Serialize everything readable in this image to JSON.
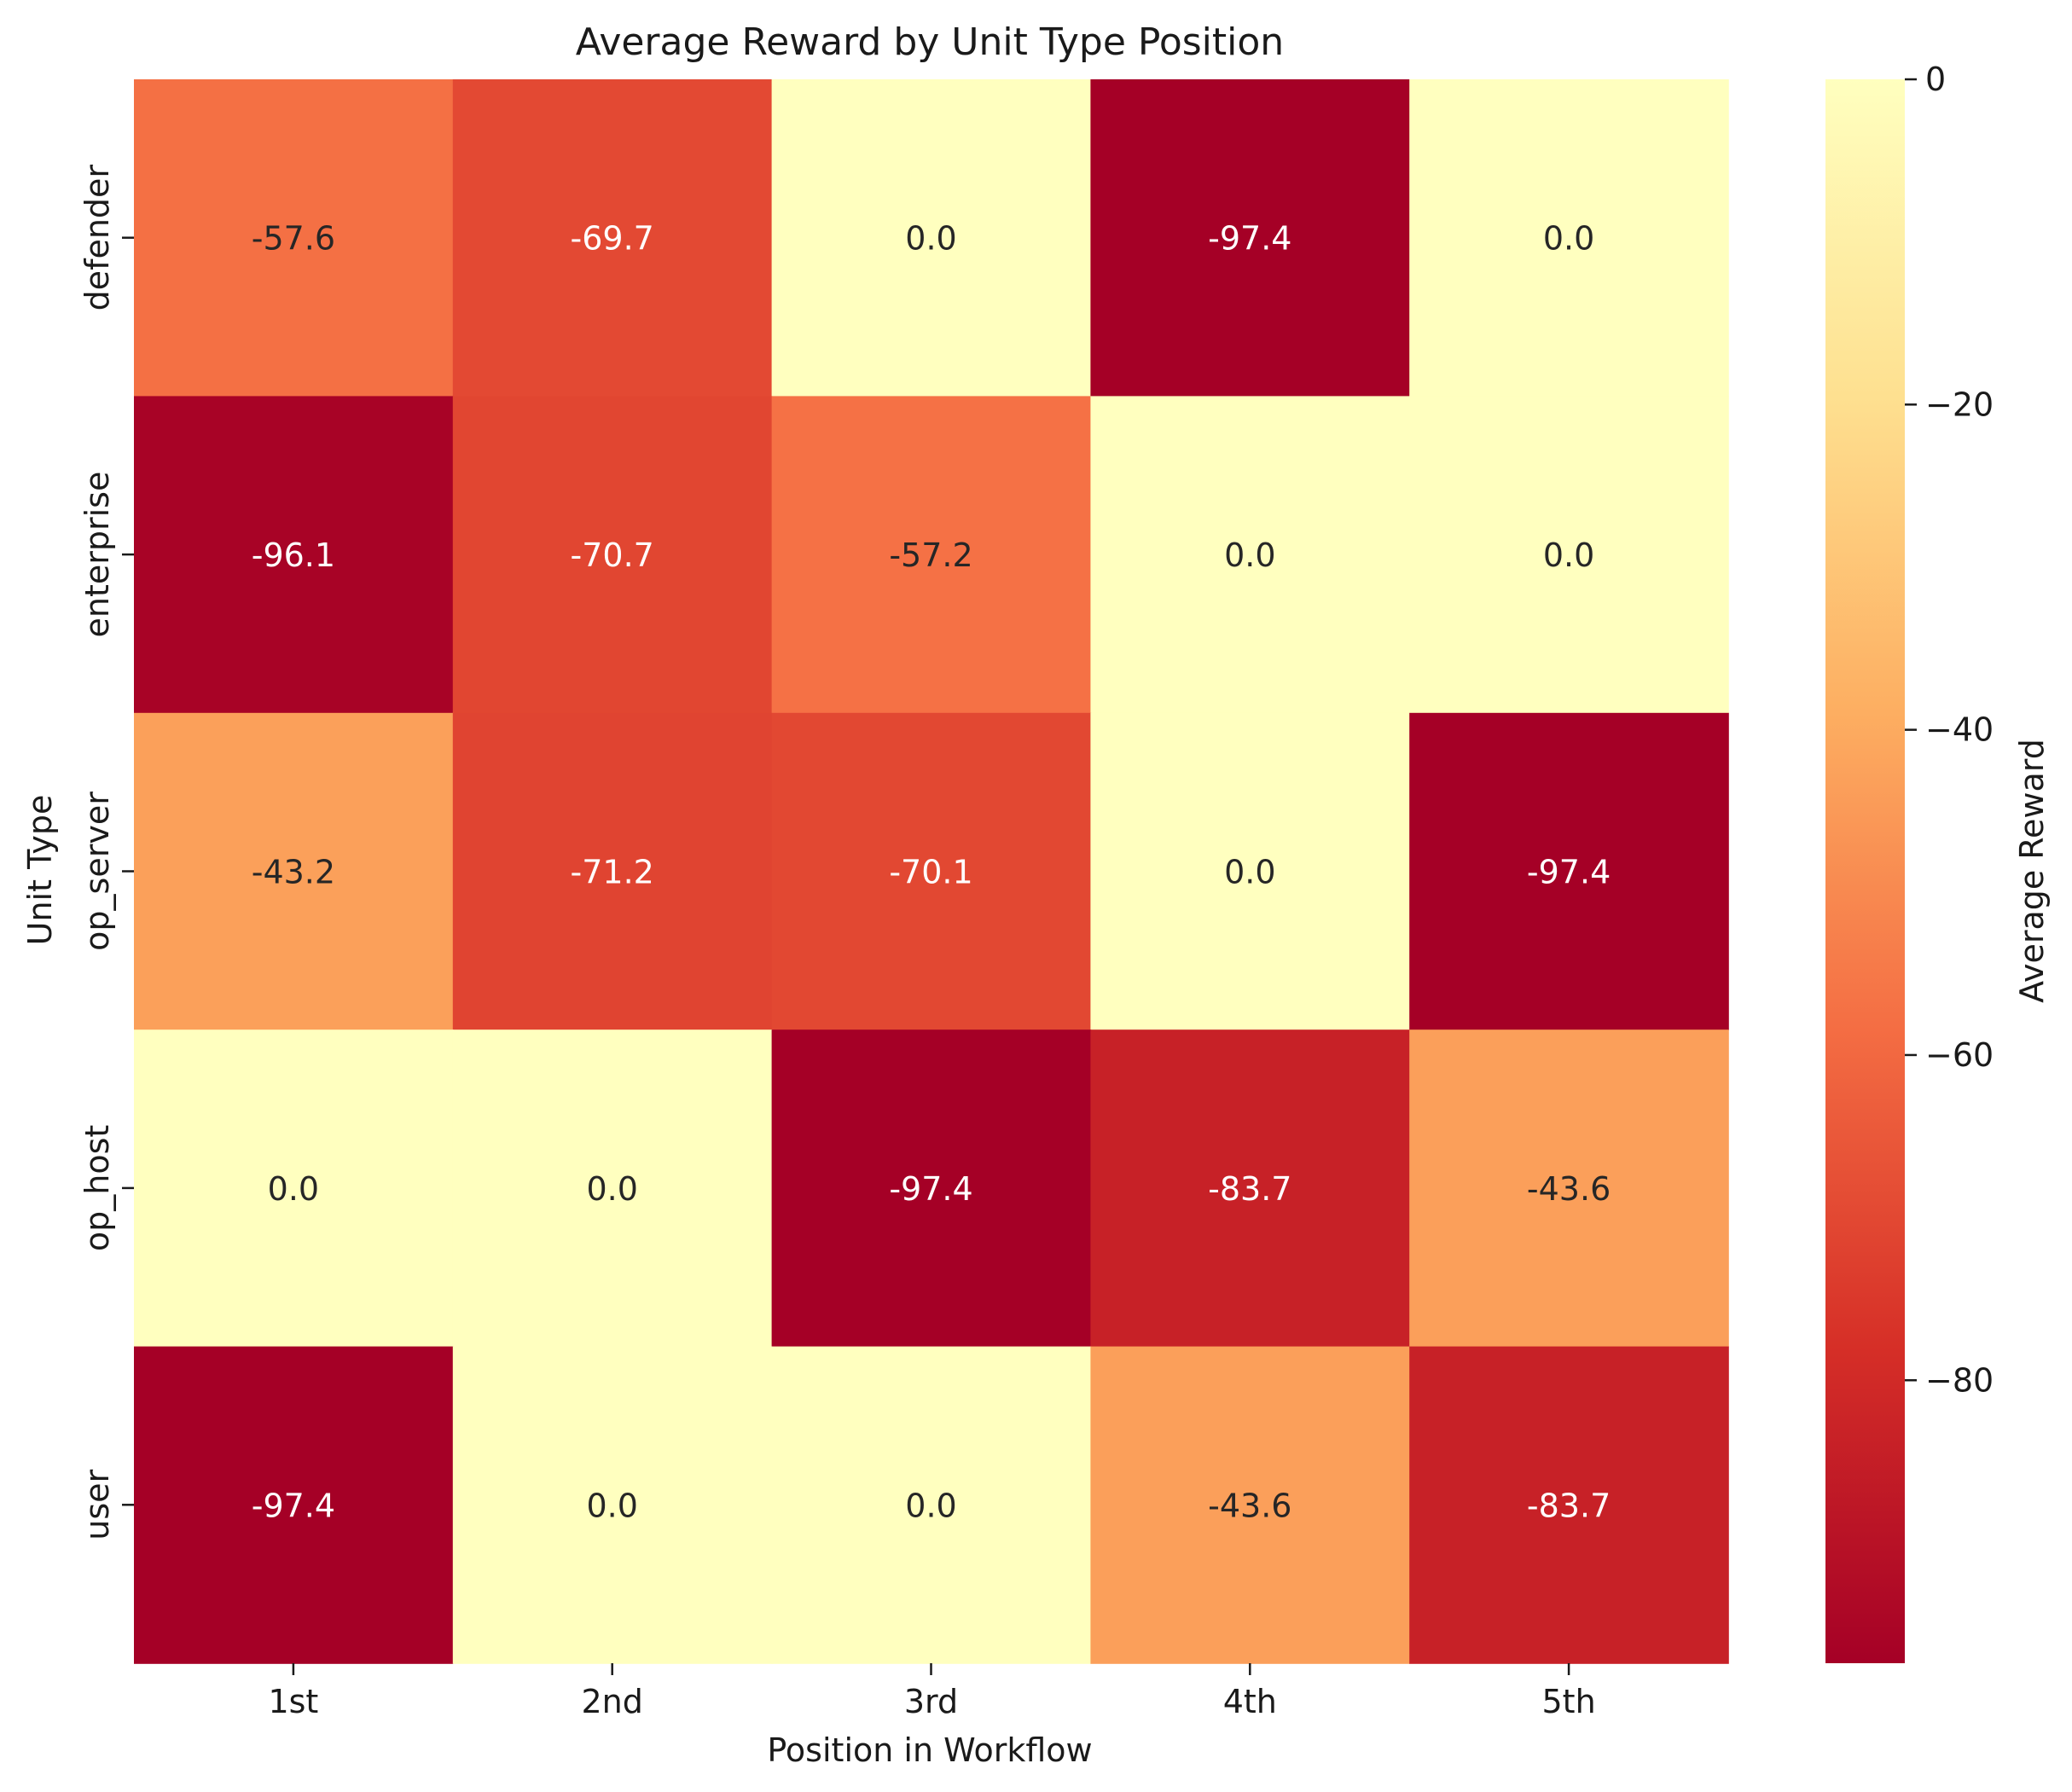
{
  "chart_data": {
    "type": "heatmap",
    "title": "Average Reward by Unit Type Position",
    "xlabel": "Position in Workflow",
    "ylabel": "Unit Type",
    "x_categories": [
      "1st",
      "2nd",
      "3rd",
      "4th",
      "5th"
    ],
    "y_categories": [
      "defender",
      "enterprise",
      "op_server",
      "op_host",
      "user"
    ],
    "values": [
      [
        -57.6,
        -69.7,
        0.0,
        -97.4,
        0.0
      ],
      [
        -96.1,
        -70.7,
        -57.2,
        0.0,
        0.0
      ],
      [
        -43.2,
        -71.2,
        -70.1,
        0.0,
        -97.4
      ],
      [
        0.0,
        0.0,
        -97.4,
        -83.7,
        -43.6
      ],
      [
        -97.4,
        0.0,
        0.0,
        -43.6,
        -83.7
      ]
    ],
    "cell_labels": [
      [
        "-57.6",
        "-69.7",
        "0.0",
        "-97.4",
        "0.0"
      ],
      [
        "-96.1",
        "-70.7",
        "-57.2",
        "0.0",
        "0.0"
      ],
      [
        "-43.2",
        "-71.2",
        "-70.1",
        "0.0",
        "-97.4"
      ],
      [
        "0.0",
        "0.0",
        "-97.4",
        "-83.7",
        "-43.6"
      ],
      [
        "-97.4",
        "0.0",
        "0.0",
        "-43.6",
        "-83.7"
      ]
    ],
    "colorbar": {
      "label": "Average Reward",
      "vmin": -97.4,
      "vmax": 0,
      "ticks": [
        0,
        -20,
        -40,
        -60,
        -80
      ],
      "tick_labels": [
        "0",
        "−20",
        "−40",
        "−60",
        "−80"
      ],
      "colormap": "YlOrRd_r",
      "stops": [
        "#a50026",
        "#d62f27",
        "#f46d43",
        "#fdae61",
        "#fee090",
        "#ffffbf"
      ]
    },
    "grid": false,
    "legend": "colorbar-right"
  }
}
